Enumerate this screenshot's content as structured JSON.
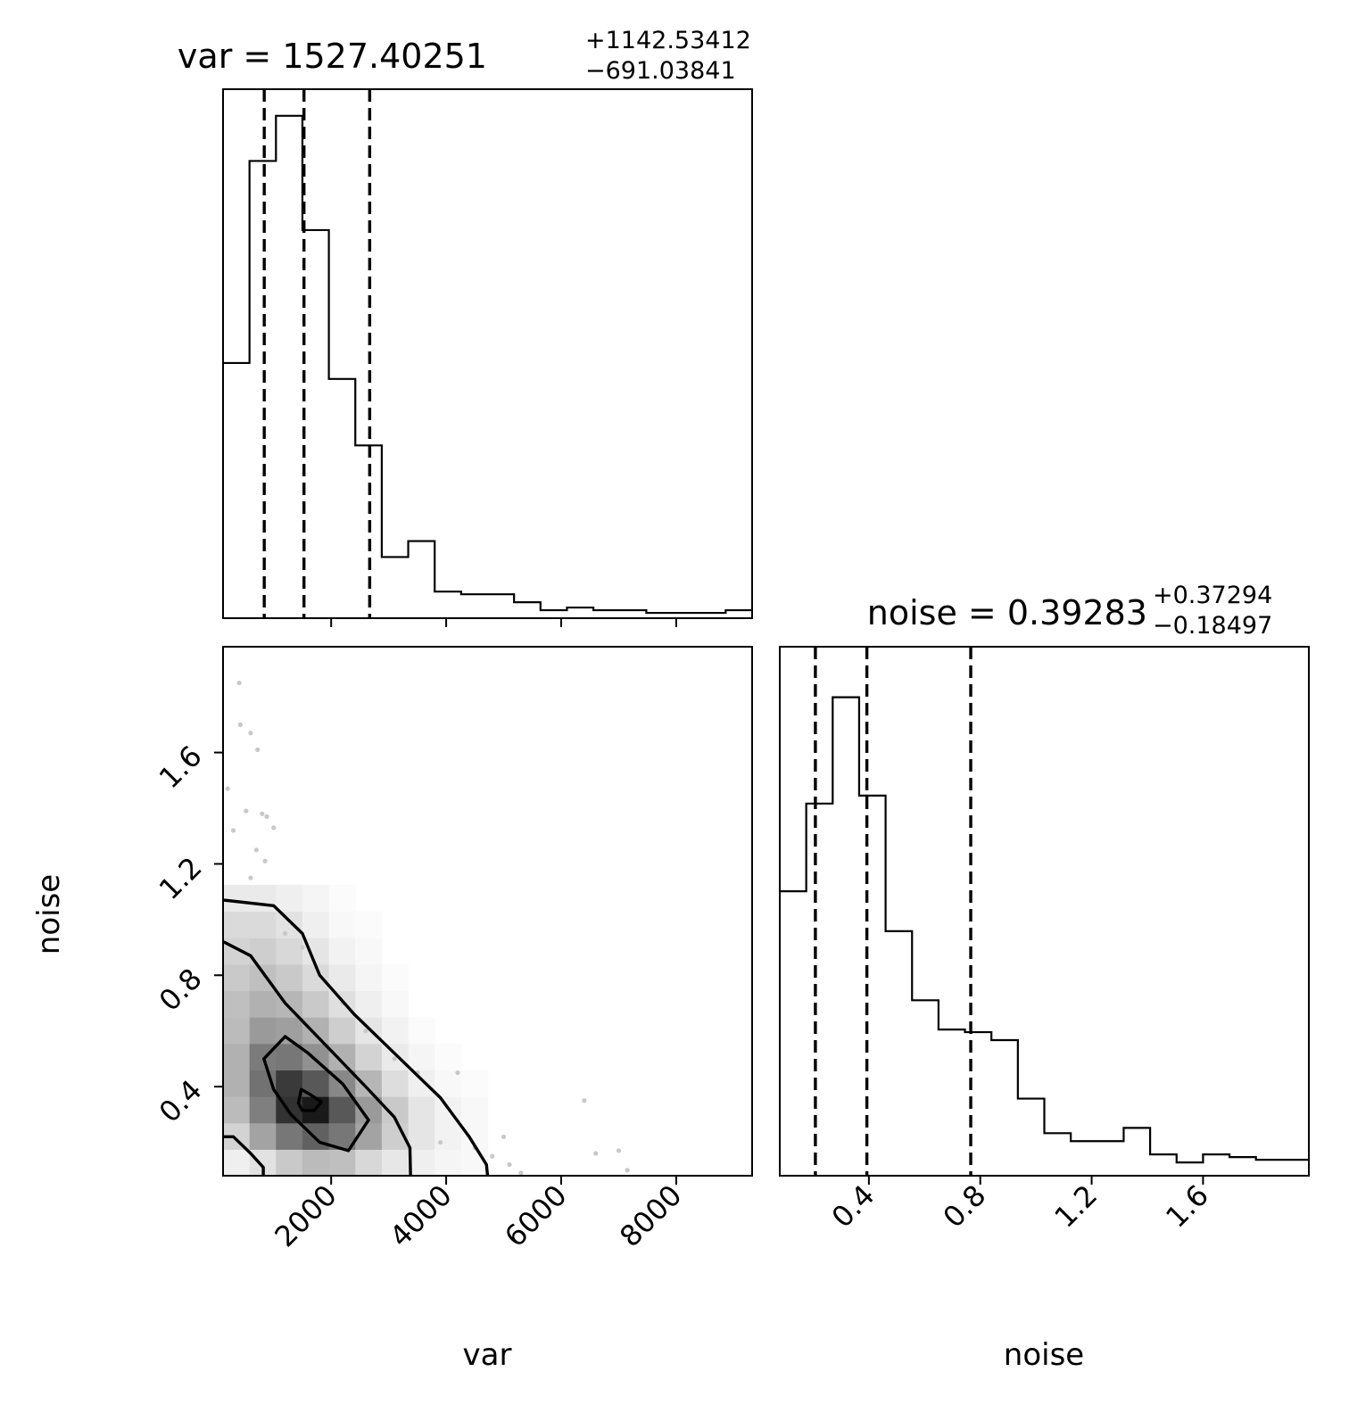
{
  "chart_data": [
    {
      "panel": "var-histogram",
      "type": "histogram",
      "title": {
        "main": "var = 1527.40251",
        "plus": "+1142.53412",
        "minus": "−691.03841"
      },
      "xlim": [
        120,
        9320
      ],
      "x_ticks": [
        "2000",
        "4000",
        "6000",
        "8000"
      ],
      "x_tick_values": [
        2000,
        4000,
        6000,
        8000
      ],
      "bin_edges": [
        120,
        580,
        1040,
        1500,
        1960,
        2420,
        2880,
        3340,
        3800,
        4260,
        4720,
        5180,
        5640,
        6100,
        6560,
        7020,
        7480,
        7940,
        8400,
        8860,
        9320
      ],
      "counts": [
        96,
        172,
        189,
        146,
        90,
        65,
        23,
        29,
        10,
        9,
        9,
        6,
        3,
        4,
        3,
        3,
        2,
        2,
        2,
        3
      ],
      "ylim": [
        0,
        199
      ],
      "quantiles": [
        836.4,
        1527.4,
        2669.9
      ]
    },
    {
      "panel": "noise-histogram",
      "type": "histogram",
      "title": {
        "main": "noise = 0.39283",
        "plus": "+0.37294",
        "minus": "−0.18497"
      },
      "xlim": [
        0.08,
        1.98
      ],
      "x_ticks": [
        "0.4",
        "0.8",
        "1.2",
        "1.6"
      ],
      "x_tick_values": [
        0.4,
        0.8,
        1.2,
        1.6
      ],
      "bin_edges": [
        0.08,
        0.175,
        0.27,
        0.365,
        0.46,
        0.555,
        0.65,
        0.745,
        0.84,
        0.935,
        1.03,
        1.125,
        1.22,
        1.315,
        1.41,
        1.505,
        1.6,
        1.695,
        1.79,
        1.885,
        1.98
      ],
      "counts": [
        107,
        140,
        180,
        143,
        92,
        66,
        55,
        54,
        51,
        29,
        16,
        13,
        13,
        18,
        8,
        5,
        8,
        7,
        6,
        6
      ],
      "ylim": [
        0,
        199
      ],
      "quantiles": [
        0.20786,
        0.39283,
        0.76577
      ]
    },
    {
      "panel": "var-noise-2d",
      "type": "heatmap",
      "xlabel": "var",
      "ylabel": "noise",
      "xlim": [
        120,
        9320
      ],
      "ylim": [
        0.08,
        1.98
      ],
      "x_ticks": [
        "2000",
        "4000",
        "6000",
        "8000"
      ],
      "x_tick_values": [
        2000,
        4000,
        6000,
        8000
      ],
      "y_ticks": [
        "0.4",
        "0.8",
        "1.2",
        "1.6"
      ],
      "y_tick_values": [
        0.4,
        0.8,
        1.2,
        1.6
      ],
      "density_grid": {
        "x_edges": [
          120,
          580,
          1040,
          1500,
          1960,
          2420,
          2880,
          3340,
          3800,
          4260,
          4720
        ],
        "y_edges": [
          0.08,
          0.175,
          0.27,
          0.365,
          0.46,
          0.555,
          0.65,
          0.745,
          0.84,
          0.935,
          1.03,
          1.125
        ],
        "values": [
          [
            0.05,
            0.1,
            0.2,
            0.26,
            0.24,
            0.14,
            0.08,
            0.05,
            0.03,
            0.02
          ],
          [
            0.16,
            0.36,
            0.56,
            0.66,
            0.56,
            0.36,
            0.18,
            0.09,
            0.04,
            0.02
          ],
          [
            0.26,
            0.52,
            0.88,
            1.0,
            0.7,
            0.4,
            0.2,
            0.09,
            0.04,
            0.02
          ],
          [
            0.3,
            0.58,
            0.84,
            0.7,
            0.48,
            0.28,
            0.12,
            0.05,
            0.02,
            0.01
          ],
          [
            0.3,
            0.54,
            0.56,
            0.44,
            0.3,
            0.16,
            0.07,
            0.03,
            0.01,
            0.0
          ],
          [
            0.26,
            0.4,
            0.38,
            0.3,
            0.18,
            0.09,
            0.04,
            0.01,
            0.0,
            0.0
          ],
          [
            0.24,
            0.3,
            0.28,
            0.2,
            0.11,
            0.05,
            0.02,
            0.0,
            0.0,
            0.0
          ],
          [
            0.2,
            0.24,
            0.2,
            0.13,
            0.07,
            0.03,
            0.01,
            0.0,
            0.0,
            0.0
          ],
          [
            0.16,
            0.18,
            0.14,
            0.09,
            0.04,
            0.02,
            0.0,
            0.0,
            0.0,
            0.0
          ],
          [
            0.13,
            0.13,
            0.1,
            0.05,
            0.02,
            0.01,
            0.0,
            0.0,
            0.0,
            0.0
          ],
          [
            0.07,
            0.07,
            0.05,
            0.03,
            0.01,
            0.0,
            0.0,
            0.0,
            0.0,
            0.0
          ]
        ]
      },
      "contours": [
        [
          [
            1500,
            0.314
          ],
          [
            1700,
            0.314
          ],
          [
            1830,
            0.345
          ],
          [
            1650,
            0.37
          ],
          [
            1480,
            0.39
          ],
          [
            1430,
            0.34
          ]
        ],
        [
          [
            1200,
            0.58
          ],
          [
            1600,
            0.52
          ],
          [
            2200,
            0.41
          ],
          [
            2650,
            0.28
          ],
          [
            2300,
            0.17
          ],
          [
            1800,
            0.2
          ],
          [
            1300,
            0.3
          ],
          [
            1000,
            0.39
          ],
          [
            830,
            0.5
          ]
        ],
        [
          [
            130,
            0.92
          ],
          [
            600,
            0.87
          ],
          [
            1200,
            0.7
          ],
          [
            1900,
            0.55
          ],
          [
            2600,
            0.4
          ],
          [
            3100,
            0.29
          ],
          [
            3370,
            0.18
          ],
          [
            3380,
            0.08
          ]
        ],
        [
          [
            130,
            1.07
          ],
          [
            1000,
            1.05
          ],
          [
            1500,
            0.95
          ],
          [
            1800,
            0.8
          ],
          [
            2400,
            0.66
          ],
          [
            3200,
            0.5
          ],
          [
            3900,
            0.36
          ],
          [
            4400,
            0.22
          ],
          [
            4700,
            0.12
          ],
          [
            4720,
            0.08
          ]
        ],
        [
          [
            130,
            0.22
          ],
          [
            300,
            0.22
          ],
          [
            600,
            0.16
          ],
          [
            820,
            0.11
          ],
          [
            820,
            0.08
          ]
        ]
      ],
      "outliers": [
        [
          400,
          1.85
        ],
        [
          420,
          1.7
        ],
        [
          600,
          1.67
        ],
        [
          720,
          1.61
        ],
        [
          200,
          1.47
        ],
        [
          520,
          1.39
        ],
        [
          800,
          1.38
        ],
        [
          880,
          1.37
        ],
        [
          1000,
          1.33
        ],
        [
          300,
          1.32
        ],
        [
          700,
          1.25
        ],
        [
          850,
          1.21
        ],
        [
          600,
          1.15
        ],
        [
          1200,
          0.95
        ],
        [
          1500,
          0.9
        ],
        [
          2200,
          0.7
        ],
        [
          2600,
          0.6
        ],
        [
          3100,
          0.5
        ],
        [
          3500,
          0.45
        ],
        [
          4200,
          0.45
        ],
        [
          4500,
          0.18
        ],
        [
          4800,
          0.15
        ],
        [
          5100,
          0.12
        ],
        [
          5300,
          0.09
        ],
        [
          6400,
          0.35
        ],
        [
          6600,
          0.16
        ],
        [
          7000,
          0.17
        ],
        [
          7150,
          0.1
        ],
        [
          3900,
          0.2
        ],
        [
          5000,
          0.22
        ]
      ]
    }
  ]
}
